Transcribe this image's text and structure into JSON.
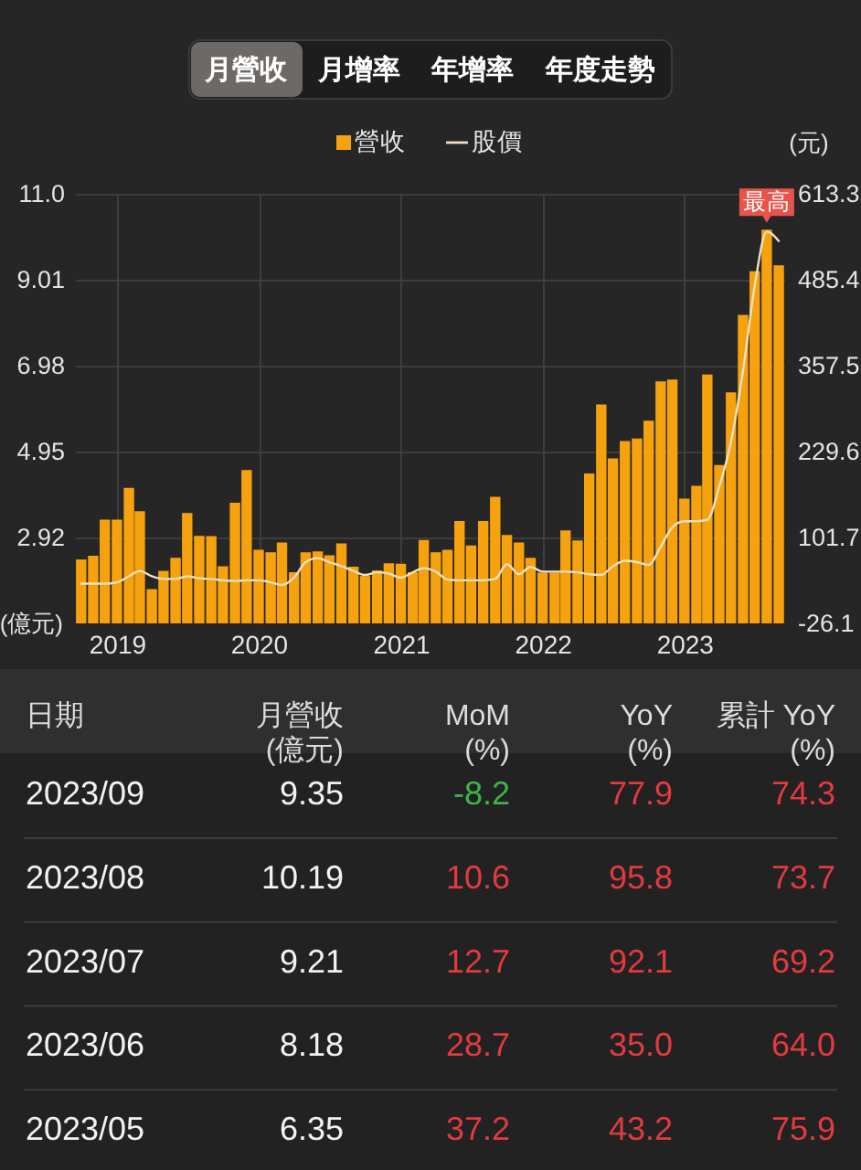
{
  "chart_data": {
    "type": "bar",
    "x": [
      "2018-10",
      "2018-11",
      "2018-12",
      "2019-01",
      "2019-02",
      "2019-03",
      "2019-04",
      "2019-05",
      "2019-06",
      "2019-07",
      "2019-08",
      "2019-09",
      "2019-10",
      "2019-11",
      "2019-12",
      "2020-01",
      "2020-02",
      "2020-03",
      "2020-04",
      "2020-05",
      "2020-06",
      "2020-07",
      "2020-08",
      "2020-09",
      "2020-10",
      "2020-11",
      "2020-12",
      "2021-01",
      "2021-02",
      "2021-03",
      "2021-04",
      "2021-05",
      "2021-06",
      "2021-07",
      "2021-08",
      "2021-09",
      "2021-10",
      "2021-11",
      "2021-12",
      "2022-01",
      "2022-02",
      "2022-03",
      "2022-04",
      "2022-05",
      "2022-06",
      "2022-07",
      "2022-08",
      "2022-09",
      "2022-10",
      "2022-11",
      "2022-12",
      "2023-01",
      "2023-02",
      "2023-03",
      "2023-04",
      "2023-05",
      "2023-06",
      "2023-07",
      "2023-08",
      "2023-09"
    ],
    "xlim": [
      "2018-09-15",
      "2023-09-15"
    ],
    "xticks": [
      "2019",
      "2020",
      "2021",
      "2022",
      "2023"
    ],
    "ylabel": "(億元)",
    "ylim": [
      0.89,
      11.04
    ],
    "yticks": [
      2.92,
      4.95,
      6.98,
      9.01,
      {
        "value": 11.04,
        "label": "11.0"
      }
    ],
    "y2label": "(元)",
    "y2lim": [
      -26.1,
      613.3
    ],
    "y2ticks": [
      -26.1,
      101.7,
      229.6,
      357.5,
      485.4,
      613.3
    ],
    "grid": true,
    "legend": "top",
    "series": [
      {
        "name": "營收",
        "color": "#f6a20f",
        "values": [
          2.4,
          2.49,
          3.34,
          3.34,
          4.09,
          3.54,
          1.7,
          2.13,
          2.44,
          3.5,
          2.96,
          2.95,
          2.24,
          3.74,
          4.51,
          2.63,
          2.57,
          2.8,
          2.1,
          2.57,
          2.59,
          2.5,
          2.78,
          2.23,
          2.01,
          2.14,
          2.31,
          2.3,
          2.1,
          2.86,
          2.57,
          2.63,
          3.31,
          2.73,
          3.31,
          3.88,
          2.98,
          2.8,
          2.44,
          2.09,
          2.09,
          3.09,
          2.85,
          4.43,
          6.06,
          4.79,
          5.2,
          5.26,
          5.68,
          6.61,
          6.65,
          3.84,
          4.14,
          6.77,
          4.63,
          6.35,
          8.18,
          9.21,
          10.19,
          9.35
        ]
      },
      {
        "name": "股價",
        "type": "line",
        "axis": "y2",
        "color": "#ede0c4",
        "values": [
          33,
          33,
          33,
          35,
          44,
          52,
          44,
          40,
          40,
          44,
          41,
          40,
          38,
          37,
          38,
          38,
          35,
          31,
          42,
          65,
          71,
          65,
          59,
          52,
          46,
          50,
          48,
          42,
          50,
          56,
          51,
          39,
          38,
          38,
          38,
          40,
          62,
          47,
          58,
          51,
          51,
          51,
          50,
          47,
          46,
          59,
          67,
          65,
          61,
          88,
          117,
          126,
          126,
          128,
          178,
          244,
          350,
          476,
          557,
          543
        ]
      }
    ],
    "annotations": [
      {
        "text": "最高",
        "x": "2023-08",
        "y": 10.19
      },
      "月營收",
      "月增率",
      "年增率",
      "年度走勢",
      "日期",
      "月營收\n(億元)",
      "MoM\n(%)",
      "YoY\n(%)",
      "累計 YoY\n(%)",
      "2023/09",
      "9.35",
      "-8.2",
      "77.9",
      "74.3",
      "2023/08",
      "10.19",
      "10.6",
      "95.8",
      "73.7",
      "2023/07",
      "9.21",
      "12.7",
      "92.1",
      "69.2",
      "2023/06",
      "8.18",
      "28.7",
      "35.0",
      "64.0",
      "2023/05",
      "6.35",
      "37.2",
      "43.2",
      "75.9"
    ]
  }
}
